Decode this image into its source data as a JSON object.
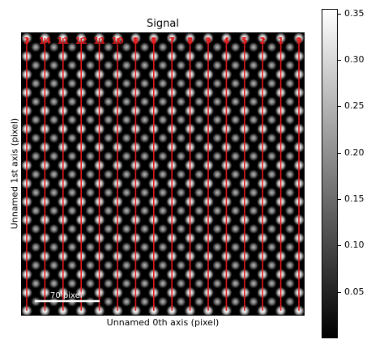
{
  "chart_data": {
    "type": "heatmap",
    "title": "Signal",
    "xlabel": "Unnamed 0th axis (pixel)",
    "ylabel": "Unnamed 1st axis (pixel)",
    "colormap": "gray",
    "colorbar": {
      "min": 0.0,
      "max": 0.355,
      "ticks": [
        "0.05",
        "0.10",
        "0.15",
        "0.20",
        "0.25",
        "0.30",
        "0.35"
      ],
      "tick_values": [
        0.05,
        0.1,
        0.15,
        0.2,
        0.25,
        0.3,
        0.35
      ]
    },
    "scalebar_label": "70 pixel",
    "line_color": "#e31a1c",
    "line_labels": [
      "3",
      "14",
      "11",
      "12",
      "11",
      "10",
      "8",
      "8",
      "7",
      "8",
      "9",
      "4",
      "5",
      "2",
      "1",
      "9"
    ],
    "atom_columns": 16,
    "atom_rows": 16
  }
}
